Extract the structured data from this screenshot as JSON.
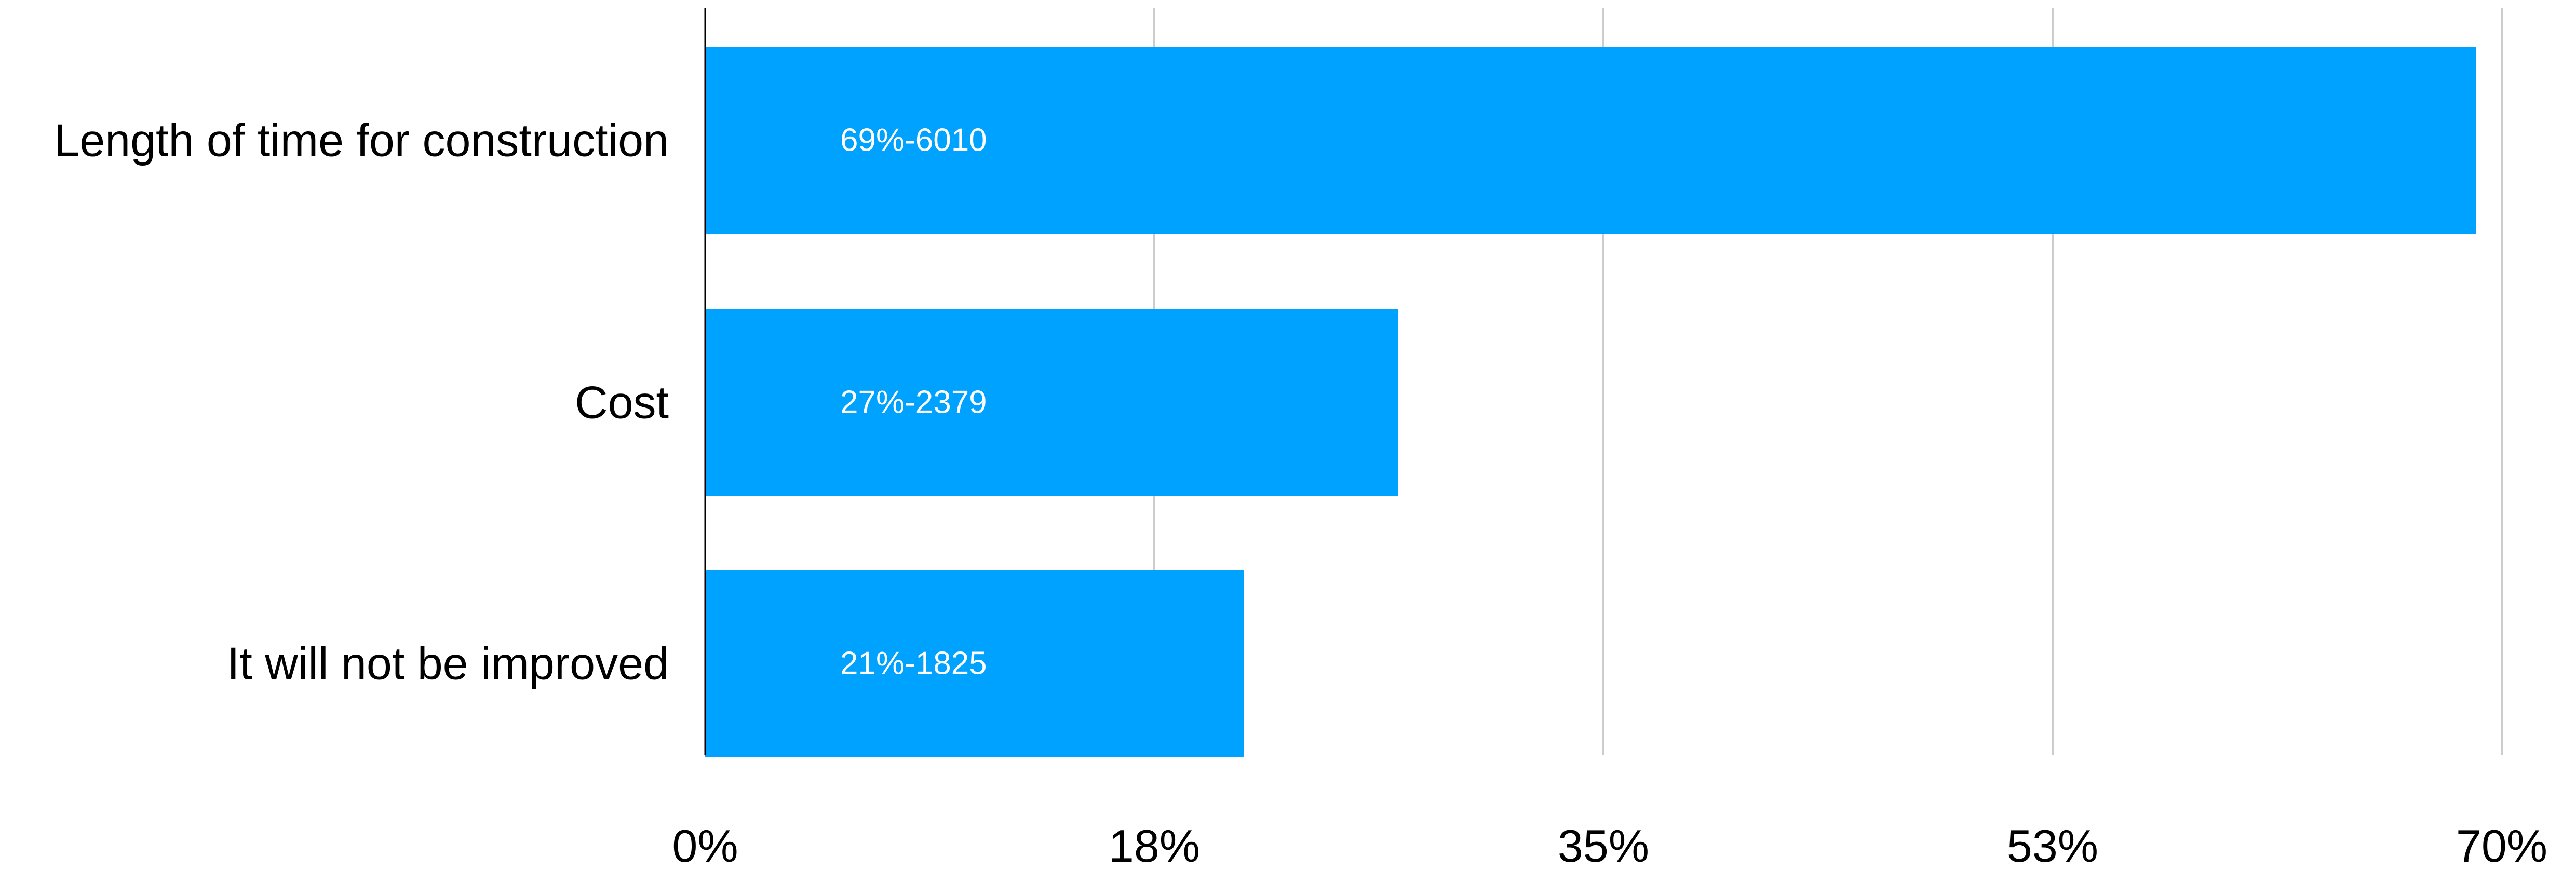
{
  "chart_data": {
    "type": "bar",
    "orientation": "horizontal",
    "categories": [
      "Length of time for construction",
      "Cost",
      "It will not be improved"
    ],
    "values": [
      69,
      27,
      21
    ],
    "counts": [
      6010,
      2379,
      1825
    ],
    "data_labels": [
      "69%-6010",
      "27%-2379",
      "21%-1825"
    ],
    "x_ticks": [
      "0%",
      "18%",
      "35%",
      "53%",
      "70%"
    ],
    "x_tick_values": [
      0,
      17.5,
      35,
      52.5,
      70
    ],
    "xlim": [
      0,
      70
    ],
    "grid": true,
    "legend": "none",
    "colors": {
      "bar": "#00A2FF",
      "data_label": "#FFFFFF",
      "grid": "#CCCCCC",
      "axis": "#000000",
      "text": "#000000"
    }
  }
}
